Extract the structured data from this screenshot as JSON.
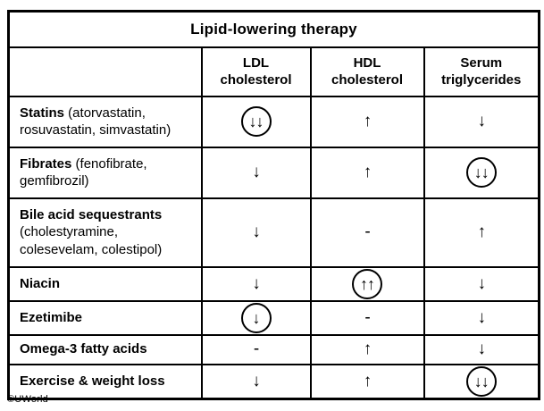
{
  "chart_data": {
    "type": "table",
    "title": "Lipid-lowering therapy",
    "columns": [
      "",
      "LDL\ncholesterol",
      "HDL\ncholesterol",
      "Serum\ntriglycerides"
    ],
    "rows": [
      {
        "name": "Statins",
        "detail": "(atorvastatin, rosuvastatin, simvastatin)",
        "values": [
          {
            "symbol": "↓↓",
            "circled": true
          },
          {
            "symbol": "↑",
            "circled": false
          },
          {
            "symbol": "↓",
            "circled": false
          }
        ]
      },
      {
        "name": "Fibrates",
        "detail": "(fenofibrate, gemfibrozil)",
        "values": [
          {
            "symbol": "↓",
            "circled": false
          },
          {
            "symbol": "↑",
            "circled": false
          },
          {
            "symbol": "↓↓",
            "circled": true
          }
        ]
      },
      {
        "name": "Bile acid sequestrants",
        "detail": "(cholestyramine, colesevelam, colestipol)",
        "values": [
          {
            "symbol": "↓",
            "circled": false
          },
          {
            "symbol": "-",
            "circled": false
          },
          {
            "symbol": "↑",
            "circled": false
          }
        ]
      },
      {
        "name": "Niacin",
        "detail": "",
        "values": [
          {
            "symbol": "↓",
            "circled": false
          },
          {
            "symbol": "↑↑",
            "circled": true
          },
          {
            "symbol": "↓",
            "circled": false
          }
        ]
      },
      {
        "name": "Ezetimibe",
        "detail": "",
        "values": [
          {
            "symbol": "↓",
            "circled": true
          },
          {
            "symbol": "-",
            "circled": false
          },
          {
            "symbol": "↓",
            "circled": false
          }
        ]
      },
      {
        "name": "Omega-3 fatty acids",
        "detail": "",
        "values": [
          {
            "symbol": "-",
            "circled": false
          },
          {
            "symbol": "↑",
            "circled": false
          },
          {
            "symbol": "↓",
            "circled": false
          }
        ]
      },
      {
        "name": "Exercise & weight loss",
        "detail": "",
        "values": [
          {
            "symbol": "↓",
            "circled": false
          },
          {
            "symbol": "↑",
            "circled": false
          },
          {
            "symbol": "↓↓",
            "circled": true
          }
        ]
      }
    ]
  },
  "footer": {
    "copyright": "©UWorld"
  },
  "colors": {
    "background": "#ffffff",
    "border": "#000000",
    "text": "#000000"
  }
}
